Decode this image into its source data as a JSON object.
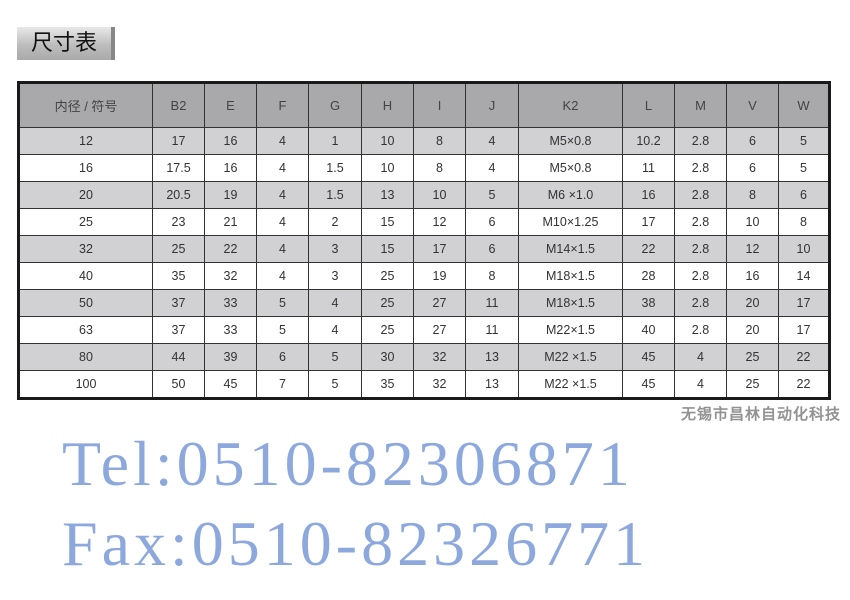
{
  "title": "尺寸表",
  "table": {
    "headers": [
      "内径 / 符号",
      "B2",
      "E",
      "F",
      "G",
      "H",
      "I",
      "J",
      "K2",
      "L",
      "M",
      "V",
      "W"
    ],
    "rows": [
      [
        "12",
        "17",
        "16",
        "4",
        "1",
        "10",
        "8",
        "4",
        "M5×0.8",
        "10.2",
        "2.8",
        "6",
        "5"
      ],
      [
        "16",
        "17.5",
        "16",
        "4",
        "1.5",
        "10",
        "8",
        "4",
        "M5×0.8",
        "11",
        "2.8",
        "6",
        "5"
      ],
      [
        "20",
        "20.5",
        "19",
        "4",
        "1.5",
        "13",
        "10",
        "5",
        "M6 ×1.0",
        "16",
        "2.8",
        "8",
        "6"
      ],
      [
        "25",
        "23",
        "21",
        "4",
        "2",
        "15",
        "12",
        "6",
        "M10×1.25",
        "17",
        "2.8",
        "10",
        "8"
      ],
      [
        "32",
        "25",
        "22",
        "4",
        "3",
        "15",
        "17",
        "6",
        "M14×1.5",
        "22",
        "2.8",
        "12",
        "10"
      ],
      [
        "40",
        "35",
        "32",
        "4",
        "3",
        "25",
        "19",
        "8",
        "M18×1.5",
        "28",
        "2.8",
        "16",
        "14"
      ],
      [
        "50",
        "37",
        "33",
        "5",
        "4",
        "25",
        "27",
        "11",
        "M18×1.5",
        "38",
        "2.8",
        "20",
        "17"
      ],
      [
        "63",
        "37",
        "33",
        "5",
        "4",
        "25",
        "27",
        "11",
        "M22×1.5",
        "40",
        "2.8",
        "20",
        "17"
      ],
      [
        "80",
        "44",
        "39",
        "6",
        "5",
        "30",
        "32",
        "13",
        "M22 ×1.5",
        "45",
        "4",
        "25",
        "22"
      ],
      [
        "100",
        "50",
        "45",
        "7",
        "5",
        "35",
        "32",
        "13",
        "M22 ×1.5",
        "45",
        "4",
        "25",
        "22"
      ]
    ]
  },
  "watermark": {
    "tel": "Tel:0510-82306871",
    "fax": "Fax:0510-82326771",
    "color": "#4673c8"
  },
  "footer": "无锡市昌林自动化科技"
}
